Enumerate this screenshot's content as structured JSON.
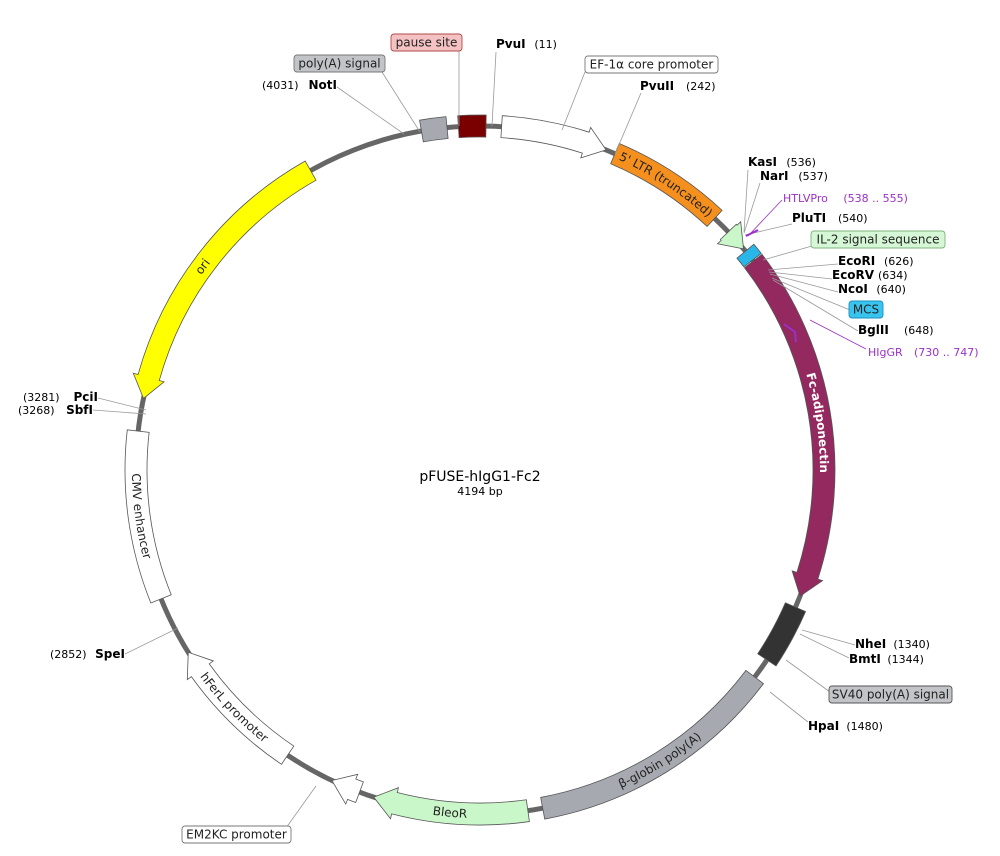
{
  "plasmid": {
    "name": "pFUSE-hIgG1-Fc2",
    "size_label": "4194 bp"
  },
  "features": [
    {
      "id": "pause-site",
      "label": "pause site",
      "callout": true,
      "fill": "#7a0000",
      "text_color": "#000000"
    },
    {
      "id": "polya-signal",
      "label": "poly(A) signal",
      "callout": true,
      "fill": "#a6a9b0",
      "text_color": "#000000"
    },
    {
      "id": "ef1a-core-promoter",
      "label": "EF-1α core promoter",
      "callout": true,
      "fill": "#ffffff",
      "text_color": "#000000"
    },
    {
      "id": "ltr-5",
      "label": "5' LTR (truncated)",
      "callout": false,
      "fill": "#f5901e",
      "text_color": "#222222"
    },
    {
      "id": "il2-signal",
      "label": "IL-2 signal sequence",
      "callout": true,
      "fill": "#c9f7c9",
      "text_color": "#000000"
    },
    {
      "id": "mcs",
      "label": "MCS",
      "callout": true,
      "fill": "#29b6e8",
      "text_color": "#000000"
    },
    {
      "id": "fc-adiponectin",
      "label": "Fc-adiponectin",
      "callout": false,
      "fill": "#93295f",
      "text_color": "#ffffff"
    },
    {
      "id": "sv40-polya",
      "label": "SV40 poly(A) signal",
      "callout": true,
      "fill": "#333333",
      "text_color": "#000000"
    },
    {
      "id": "beta-globin-polya",
      "label": "β-globin poly(A)",
      "callout": false,
      "fill": "#a6a9b0",
      "text_color": "#222222"
    },
    {
      "id": "bleor",
      "label": "BleoR",
      "callout": false,
      "fill": "#c9f7c9",
      "text_color": "#222222"
    },
    {
      "id": "em2kc-promoter",
      "label": "EM2KC promoter",
      "callout": true,
      "fill": "#ffffff",
      "text_color": "#000000"
    },
    {
      "id": "hferl-promoter",
      "label": "hFerL promoter",
      "callout": false,
      "fill": "#ffffff",
      "text_color": "#222222"
    },
    {
      "id": "cmv-enhancer",
      "label": "CMV enhancer",
      "callout": false,
      "fill": "#ffffff",
      "text_color": "#222222"
    },
    {
      "id": "ori",
      "label": "ori",
      "callout": false,
      "fill": "#ffff00",
      "text_color": "#222222"
    }
  ],
  "sites": [
    {
      "id": "pvui",
      "name": "PvuI",
      "pos": "(11)"
    },
    {
      "id": "pvuii",
      "name": "PvuII",
      "pos": "(242)"
    },
    {
      "id": "kasi",
      "name": "KasI",
      "pos": "(536)"
    },
    {
      "id": "nari",
      "name": "NarI",
      "pos": "(537)"
    },
    {
      "id": "plutı",
      "name": "PluTI",
      "pos": "(540)"
    },
    {
      "id": "ecori",
      "name": "EcoRI",
      "pos": "(626)"
    },
    {
      "id": "ecorv",
      "name": "EcoRV",
      "pos": "(634)"
    },
    {
      "id": "ncoi",
      "name": "NcoI",
      "pos": "(640)"
    },
    {
      "id": "bglii",
      "name": "BglII",
      "pos": "(648)"
    },
    {
      "id": "nhei",
      "name": "NheI",
      "pos": "(1340)"
    },
    {
      "id": "bmti",
      "name": "BmtI",
      "pos": "(1344)"
    },
    {
      "id": "hpai",
      "name": "HpaI",
      "pos": "(1480)"
    },
    {
      "id": "spei",
      "name": "SpeI",
      "pos": "(2852)"
    },
    {
      "id": "sbfi",
      "name": "SbfI",
      "pos": "(3268)"
    },
    {
      "id": "pcii",
      "name": "PciI",
      "pos": "(3281)"
    },
    {
      "id": "noti",
      "name": "NotI",
      "pos": "(4031)"
    }
  ],
  "primers": [
    {
      "id": "htlvpro",
      "name": "HTLVPro",
      "range": "(538 .. 555)",
      "color": "#9b30c8"
    },
    {
      "id": "higgr",
      "name": "HIgGR",
      "range": "(730 .. 747)",
      "color": "#9b30c8"
    }
  ]
}
